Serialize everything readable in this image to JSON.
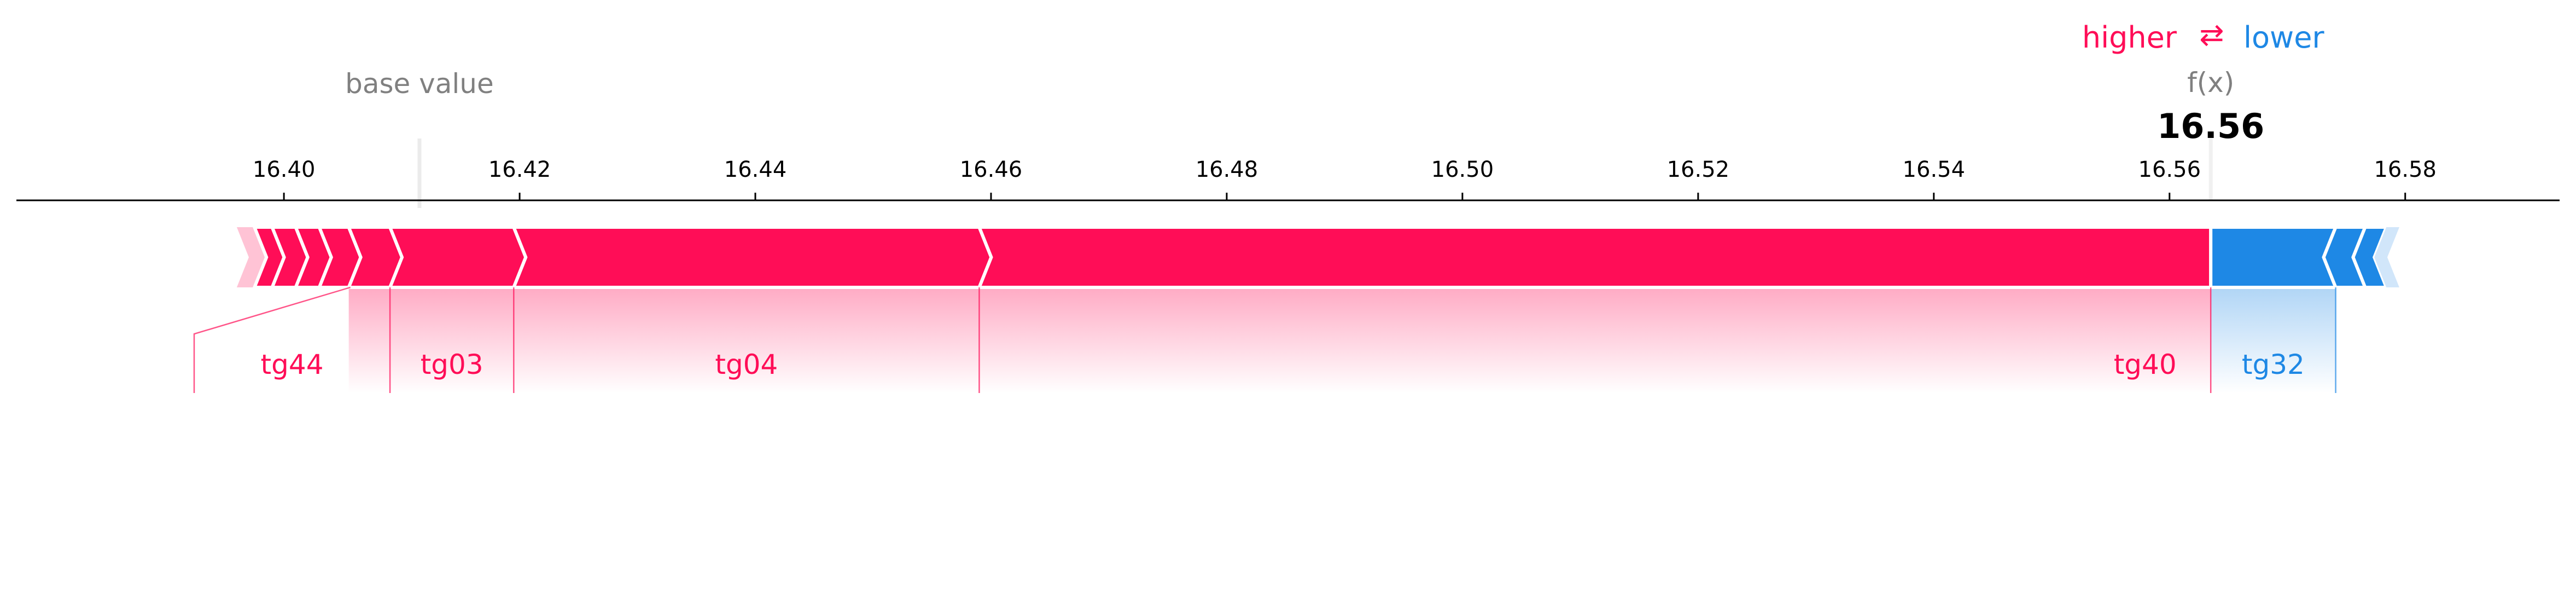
{
  "chart_data": {
    "type": "force_plot",
    "legend": {
      "higher_label": "higher",
      "arrow_symbol": "⇄",
      "lower_label": "lower"
    },
    "base_value_label": "base value",
    "base_value": 16.4115,
    "fx_label": "f(x)",
    "fx_value": 16.5635,
    "fx_display": "16.56",
    "x_range": [
      16.3773,
      16.5931
    ],
    "ticks": [
      16.4,
      16.42,
      16.44,
      16.46,
      16.48,
      16.5,
      16.52,
      16.54,
      16.56,
      16.58
    ],
    "tick_labels": [
      "16.40",
      "16.42",
      "16.44",
      "16.46",
      "16.48",
      "16.50",
      "16.52",
      "16.54",
      "16.56",
      "16.58"
    ],
    "positive_segments": [
      {
        "from": 16.396,
        "to": 16.3975,
        "label": ""
      },
      {
        "from": 16.3975,
        "to": 16.399,
        "label": ""
      },
      {
        "from": 16.399,
        "to": 16.401,
        "label": ""
      },
      {
        "from": 16.401,
        "to": 16.403,
        "label": ""
      },
      {
        "from": 16.403,
        "to": 16.4055,
        "label": ""
      },
      {
        "from": 16.4055,
        "to": 16.409,
        "label": "tg44"
      },
      {
        "from": 16.409,
        "to": 16.4195,
        "label": "tg03"
      },
      {
        "from": 16.4195,
        "to": 16.459,
        "label": "tg04"
      },
      {
        "from": 16.459,
        "to": 16.5635,
        "label": "tg40"
      }
    ],
    "negative_segments": [
      {
        "from": 16.5635,
        "to": 16.5741,
        "label": "tg32"
      },
      {
        "from": 16.5741,
        "to": 16.5766,
        "label": ""
      },
      {
        "from": 16.5766,
        "to": 16.5784,
        "label": ""
      },
      {
        "from": 16.5784,
        "to": 16.5795,
        "label": ""
      }
    ],
    "colors": {
      "positive": "#ff0d57",
      "negative": "#1e88e5",
      "positive_light": "#ffc3d5",
      "negative_light": "#d1e6fa",
      "axis": "#000000",
      "base_text": "#808080",
      "base_line": "#f0f0f0"
    }
  }
}
